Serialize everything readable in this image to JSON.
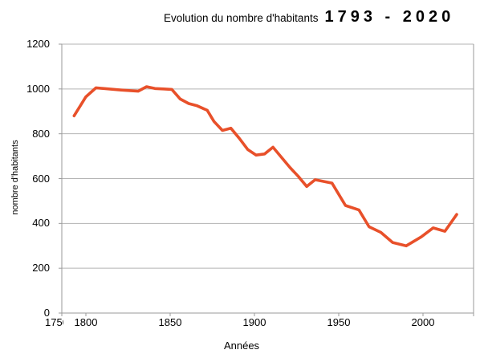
{
  "title": {
    "main": "Evolution du nombre d'habitants",
    "range": "1793 - 2020"
  },
  "chart_data": {
    "type": "line",
    "title": "Evolution du nombre d'habitants 1793 - 2020",
    "xlabel": "Années",
    "ylabel": "nombre d'habitants",
    "legend": "none",
    "grid": true,
    "x_axis": {
      "tick_labels": [
        "1750",
        "1800",
        "1850",
        "1900",
        "1950",
        "2000"
      ],
      "tick_years": [
        1750,
        1800,
        1850,
        1900,
        1950,
        2000
      ],
      "first_label_clipped": "175"
    },
    "y_axis": {
      "ticks": [
        0,
        200,
        400,
        600,
        800,
        1000,
        1200
      ],
      "range": [
        0,
        1200
      ]
    },
    "colors": {
      "line": "#e8502a",
      "grid": "#b3b3b3",
      "axis": "#9a9a9a",
      "text": "#000000"
    },
    "series": [
      {
        "name": "nombre d'habitants",
        "x": [
          1793,
          1800,
          1806,
          1821,
          1831,
          1836,
          1841,
          1846,
          1851,
          1856,
          1861,
          1866,
          1872,
          1876,
          1881,
          1886,
          1891,
          1896,
          1901,
          1906,
          1911,
          1921,
          1926,
          1931,
          1936,
          1946,
          1954,
          1962,
          1968,
          1975,
          1982,
          1990,
          1999,
          2006,
          2013,
          2020
        ],
        "y": [
          880,
          965,
          1005,
          995,
          990,
          1010,
          1002,
          1000,
          998,
          955,
          935,
          925,
          905,
          855,
          815,
          825,
          780,
          730,
          705,
          710,
          740,
          650,
          610,
          565,
          595,
          580,
          480,
          460,
          385,
          360,
          315,
          300,
          340,
          380,
          365,
          440
        ]
      }
    ]
  }
}
